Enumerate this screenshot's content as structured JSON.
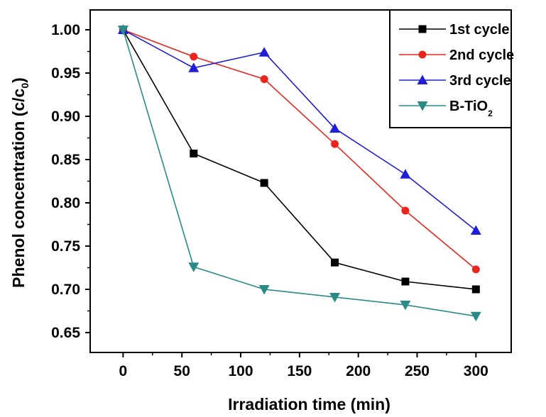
{
  "chart_data": {
    "type": "line",
    "xlabel": "Irradiation time (min)",
    "ylabel": "Phenol concentration (c/c",
    "ylabel_sub": "0",
    "ylabel_close": ")",
    "xlim": [
      -28,
      330
    ],
    "ylim": [
      0.627,
      1.023
    ],
    "x_ticks": [
      0,
      50,
      100,
      150,
      200,
      250,
      300
    ],
    "x_tick_labels": [
      "0",
      "50",
      "100",
      "150",
      "200",
      "250",
      "300"
    ],
    "y_ticks": [
      0.65,
      0.7,
      0.75,
      0.8,
      0.85,
      0.9,
      0.95,
      1.0
    ],
    "y_tick_labels": [
      "0.65",
      "0.70",
      "0.75",
      "0.80",
      "0.85",
      "0.90",
      "0.95",
      "1.00"
    ],
    "grid": false,
    "legend_position": "top-right",
    "x": [
      0,
      60,
      120,
      180,
      240,
      300
    ],
    "series": [
      {
        "name": "1st cycle",
        "name_sub": "",
        "color": "#000000",
        "marker": "square",
        "values": [
          1.0,
          0.857,
          0.823,
          0.731,
          0.709,
          0.7
        ]
      },
      {
        "name": "2nd cycle",
        "name_sub": "",
        "color": "#e8261e",
        "marker": "circle",
        "values": [
          1.0,
          0.969,
          0.943,
          0.868,
          0.791,
          0.723
        ]
      },
      {
        "name": "3rd cycle",
        "name_sub": "",
        "color": "#1f1fd6",
        "marker": "triangle-up",
        "values": [
          1.0,
          0.956,
          0.974,
          0.886,
          0.833,
          0.768
        ]
      },
      {
        "name": "B-TiO",
        "name_sub": "2",
        "color": "#2a8a85",
        "marker": "triangle-down",
        "values": [
          1.0,
          0.726,
          0.7,
          0.691,
          0.682,
          0.669
        ]
      }
    ]
  }
}
